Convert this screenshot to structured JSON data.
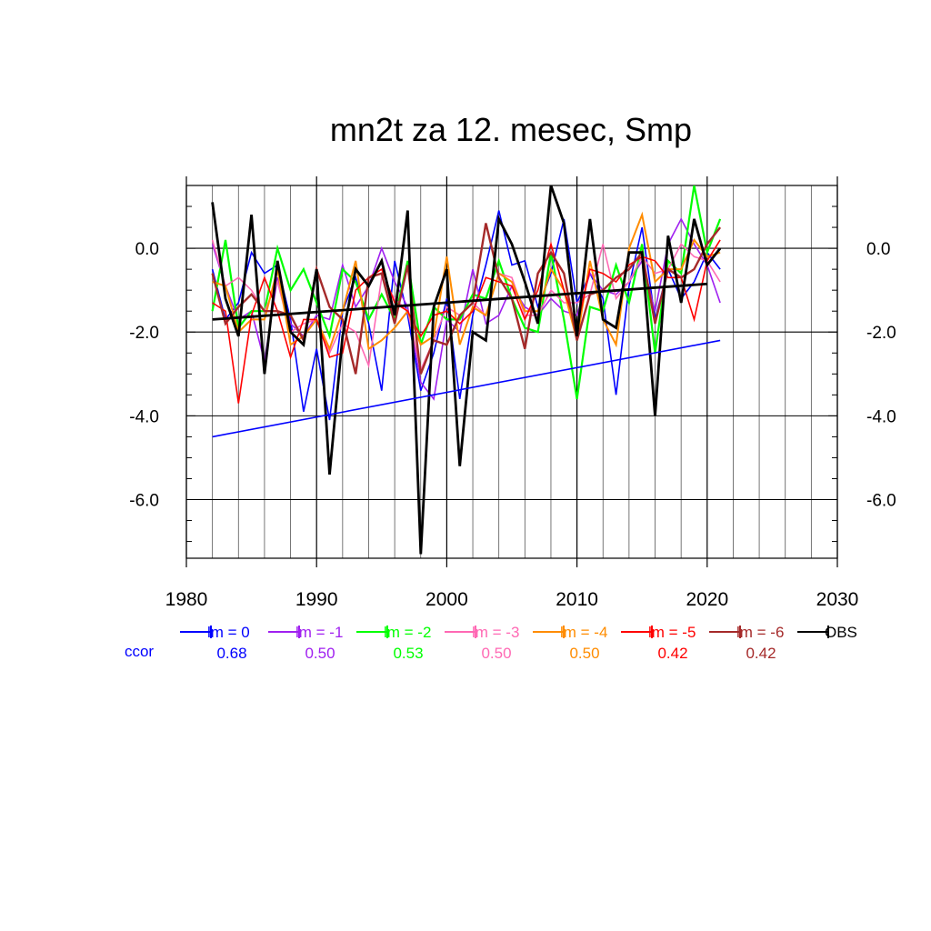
{
  "chart_data": {
    "type": "line",
    "title": "mn2t za 12. mesec, Smp",
    "xlabel": "",
    "ylabel": "",
    "xlim": [
      1980,
      2030
    ],
    "ylim": [
      -7.4,
      1.5
    ],
    "x_ticks": [
      "1980",
      "1990",
      "2000",
      "2010",
      "2020",
      "2030"
    ],
    "y_ticks": [
      "0.0",
      "-2.0",
      "-4.0",
      "-6.0"
    ],
    "x": [
      1982,
      1983,
      1984,
      1985,
      1986,
      1987,
      1988,
      1989,
      1990,
      1991,
      1992,
      1993,
      1994,
      1995,
      1996,
      1997,
      1998,
      1999,
      2000,
      2001,
      2002,
      2003,
      2004,
      2005,
      2006,
      2007,
      2008,
      2009,
      2010,
      2011,
      2012,
      2013,
      2014,
      2015,
      2016,
      2017,
      2018,
      2019,
      2020,
      2021
    ],
    "series": [
      {
        "name": "lm = 0",
        "color": "#0000ff",
        "width": 1.6,
        "values": [
          -0.5,
          -1.7,
          -1.3,
          -0.1,
          -0.6,
          -0.4,
          -1.7,
          -3.9,
          -2.4,
          -4.1,
          -1.5,
          -0.7,
          -1.8,
          -3.4,
          -0.3,
          -1.6,
          -3.4,
          -2.5,
          -1.2,
          -3.6,
          -1.6,
          -0.4,
          0.9,
          -0.4,
          -0.3,
          -1.4,
          -0.6,
          0.7,
          -1.3,
          -0.6,
          -1.2,
          -3.5,
          -0.9,
          0.5,
          -1.7,
          -0.5,
          -1.2,
          -0.8,
          -0.1,
          -0.5
        ]
      },
      {
        "name": "lm = -1",
        "color": "#a020f0",
        "width": 1.6,
        "values": [
          0.1,
          -0.9,
          -1.7,
          -1.5,
          -2.7,
          -0.7,
          -1.8,
          -2.1,
          -1.6,
          -1.7,
          -0.4,
          -1.4,
          -0.9,
          0.0,
          -0.8,
          -1.4,
          -3.2,
          -3.6,
          -1.7,
          -2.0,
          -0.5,
          -1.8,
          -1.6,
          -0.9,
          -1.4,
          -1.6,
          -1.2,
          -1.5,
          -1.6,
          -0.6,
          -1.0,
          -1.1,
          -0.8,
          -0.3,
          -1.5,
          0.1,
          0.7,
          0.1,
          -0.4,
          -1.3
        ]
      },
      {
        "name": "lm = -2",
        "color": "#00ff00",
        "width": 2.2,
        "values": [
          -1.5,
          0.2,
          -1.9,
          -1.5,
          -1.5,
          0.0,
          -1.0,
          -0.5,
          -1.3,
          -2.1,
          -0.5,
          -0.8,
          -1.7,
          -1.1,
          -1.7,
          -0.3,
          -2.3,
          -1.4,
          -1.7,
          -1.7,
          -1.1,
          -1.2,
          -0.3,
          -1.2,
          -1.9,
          -2.0,
          -0.1,
          -1.7,
          -3.6,
          -1.4,
          -1.5,
          -0.4,
          -1.3,
          0.1,
          -2.5,
          -0.3,
          -0.6,
          1.5,
          -0.1,
          0.7
        ]
      },
      {
        "name": "lm = -3",
        "color": "#ff69b4",
        "width": 1.6,
        "values": [
          0.2,
          -0.9,
          -0.7,
          -1.0,
          -1.5,
          -0.8,
          -2.0,
          -1.8,
          -1.7,
          -2.5,
          -1.8,
          -2.0,
          -2.8,
          -0.7,
          -1.2,
          -1.5,
          -2.9,
          -2.2,
          -1.4,
          -1.6,
          -1.3,
          -1.6,
          -0.6,
          -0.7,
          -1.6,
          -1.6,
          -1.0,
          -1.3,
          -1.3,
          -1.1,
          0.1,
          -1.2,
          -0.8,
          -0.2,
          -0.6,
          -0.5,
          0.1,
          -0.2,
          -0.3,
          -0.8
        ]
      },
      {
        "name": "lm = -4",
        "color": "#ff8c00",
        "width": 2.0,
        "values": [
          -0.8,
          -0.9,
          -2.0,
          -1.7,
          -1.7,
          -0.5,
          -2.3,
          -2.1,
          -1.7,
          -2.4,
          -1.5,
          -0.3,
          -2.4,
          -2.2,
          -1.9,
          -1.5,
          -2.3,
          -2.1,
          -0.2,
          -2.3,
          -1.4,
          -1.6,
          -0.6,
          -0.8,
          -1.5,
          -1.5,
          -0.5,
          -1.0,
          -2.2,
          -0.3,
          -1.7,
          -2.3,
          0.0,
          0.8,
          -0.8,
          -0.5,
          -0.5,
          0.2,
          -0.2,
          -0.1
        ]
      },
      {
        "name": "lm = -5",
        "color": "#ff0000",
        "width": 1.6,
        "values": [
          -1.3,
          -1.5,
          -3.7,
          -1.6,
          -0.7,
          -1.5,
          -2.6,
          -1.7,
          -1.7,
          -2.6,
          -2.5,
          -1.0,
          -0.7,
          -0.5,
          -1.3,
          -1.5,
          -2.1,
          -1.6,
          -1.5,
          -1.8,
          -1.5,
          -0.7,
          -0.8,
          -0.9,
          -1.7,
          -1.0,
          0.1,
          -1.0,
          -1.9,
          -0.5,
          -0.6,
          -0.8,
          -0.4,
          -0.2,
          -0.3,
          -0.7,
          -0.7,
          -1.7,
          -0.3,
          0.2
        ]
      },
      {
        "name": "lm = -6",
        "color": "#a52a2a",
        "width": 2.4,
        "values": [
          -0.6,
          -1.8,
          -1.4,
          -1.1,
          -1.5,
          -1.5,
          -1.6,
          -2.2,
          -0.5,
          -1.4,
          -1.7,
          -3.0,
          -0.7,
          -0.6,
          -1.8,
          -0.4,
          -3.0,
          -2.2,
          -2.3,
          -1.6,
          -1.3,
          0.6,
          -0.7,
          -1.2,
          -2.4,
          -0.6,
          -0.1,
          -0.6,
          -2.2,
          -1.1,
          -1.0,
          -0.7,
          -0.5,
          -0.1,
          -1.8,
          -0.5,
          -0.7,
          -0.5,
          0.1,
          0.5
        ]
      },
      {
        "name": "OBS",
        "color": "#000000",
        "width": 2.8,
        "values": [
          1.1,
          -1.2,
          -2.1,
          0.8,
          -3.0,
          -0.3,
          -2.0,
          -2.3,
          -0.5,
          -5.4,
          -2.1,
          -0.5,
          -0.9,
          -0.3,
          -1.6,
          0.9,
          -7.3,
          -1.4,
          -0.5,
          -5.2,
          -2.0,
          -2.2,
          0.7,
          0.1,
          -0.8,
          -1.8,
          1.5,
          0.6,
          -2.1,
          0.7,
          -1.7,
          -1.9,
          -0.1,
          -0.1,
          -4.0,
          0.3,
          -1.3,
          0.7,
          -0.4,
          0.0
        ]
      }
    ],
    "trend_lines": [
      {
        "name": "lm = 0 trend",
        "color": "#0000ff",
        "width": 1.6,
        "x": [
          1982,
          2021
        ],
        "y": [
          -4.5,
          -2.2
        ]
      },
      {
        "name": "OBS trend",
        "color": "#000000",
        "width": 2.8,
        "x": [
          1982,
          2020
        ],
        "y": [
          -1.7,
          -0.85
        ]
      }
    ],
    "legend": {
      "position": "bottom",
      "row_label": "ccor",
      "row_label_color": "#0000ff",
      "entries": [
        {
          "name": "lm = 0",
          "ccor": "0.68",
          "color": "#0000ff"
        },
        {
          "name": "lm = -1",
          "ccor": "0.50",
          "color": "#a020f0"
        },
        {
          "name": "lm = -2",
          "ccor": "0.53",
          "color": "#00ff00"
        },
        {
          "name": "lm = -3",
          "ccor": "0.50",
          "color": "#ff69b4"
        },
        {
          "name": "lm = -4",
          "ccor": "0.50",
          "color": "#ff8c00"
        },
        {
          "name": "lm = -5",
          "ccor": "0.42",
          "color": "#ff0000"
        },
        {
          "name": "lm = -6",
          "ccor": "0.42",
          "color": "#a52a2a"
        },
        {
          "name": "OBS",
          "ccor": "",
          "color": "#000000"
        }
      ]
    },
    "grid": true
  }
}
